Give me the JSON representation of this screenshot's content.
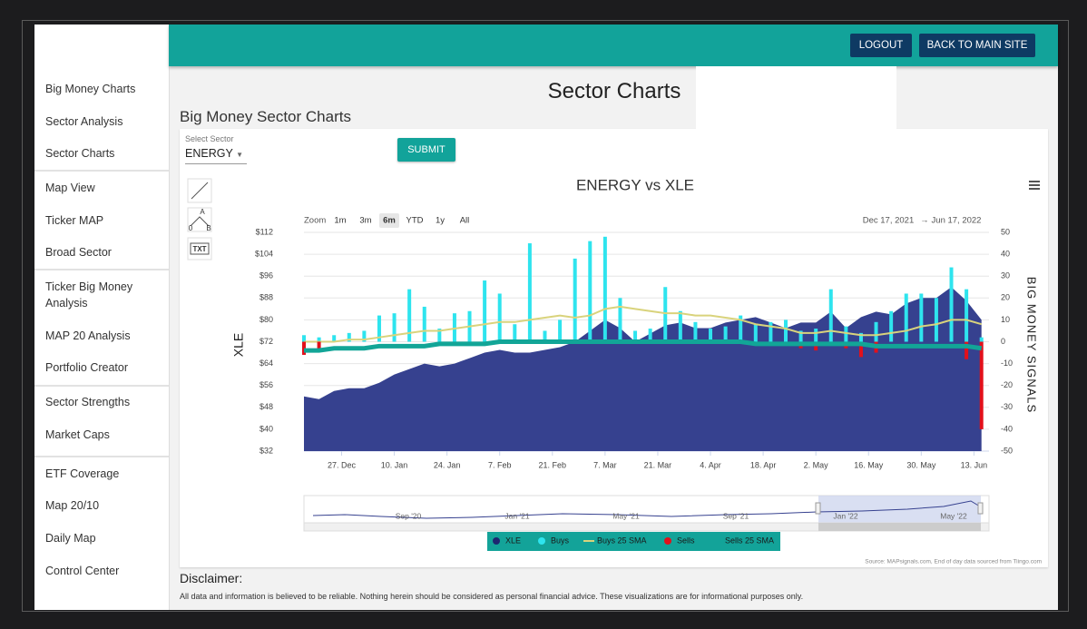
{
  "sidebar": {
    "groups": [
      [
        "Big Money Charts",
        "Sector Analysis",
        "Sector Charts"
      ],
      [
        "Map View",
        "Ticker MAP",
        "Broad Sector"
      ],
      [
        "Ticker Big Money Analysis",
        "MAP 20 Analysis",
        "Portfolio Creator"
      ],
      [
        "Sector Strengths",
        "Market Caps"
      ],
      [
        "ETF Coverage",
        "Map 20/10",
        "Daily Map",
        "Control Center"
      ]
    ]
  },
  "header": {
    "buttons": [
      "LOGOUT",
      "BACK TO MAIN SITE"
    ]
  },
  "page": {
    "title": "Sector Charts",
    "subtitle": "Big Money Sector Charts",
    "select_label": "Select Sector",
    "select_value": "ENERGY",
    "submit": "SUBMIT",
    "disclaimer_title": "Disclaimer:",
    "disclaimer_text": "All data and information is believed to be reliable. Nothing herein should be considered as personal financial advice. These visualizations are for informational purposes only."
  },
  "tools": {
    "labels": [
      "A",
      "0",
      "B",
      "TXT"
    ]
  },
  "chart_data": {
    "type": "combo",
    "title": "ENERGY vs XLE",
    "ylabel": "XLE",
    "y2label": "BIG MONEY SIGNALS",
    "zoom_label": "Zoom",
    "zoom_buttons": [
      "1m",
      "3m",
      "6m",
      "YTD",
      "1y",
      "All"
    ],
    "zoom_selected": "6m",
    "range_from": "Dec 17, 2021",
    "range_separator": "→",
    "range_to": "Jun 17, 2022",
    "credits": "Source: MAPsignals.com, End of day data sourced from Tiingo.com",
    "navigator_labels": [
      "Sep '20",
      "Jan '21",
      "May '21",
      "Sep '21",
      "Jan '22",
      "May '22"
    ],
    "grid": true,
    "xlim": [
      "2021-12-17",
      "2022-06-17"
    ],
    "xticks": [
      {
        "value": "2021-12-27",
        "label": "27. Dec"
      },
      {
        "value": "2022-01-10",
        "label": "10. Jan"
      },
      {
        "value": "2022-01-24",
        "label": "24. Jan"
      },
      {
        "value": "2022-02-07",
        "label": "7. Feb"
      },
      {
        "value": "2022-02-21",
        "label": "21. Feb"
      },
      {
        "value": "2022-03-07",
        "label": "7. Mar"
      },
      {
        "value": "2022-03-21",
        "label": "21. Mar"
      },
      {
        "value": "2022-04-04",
        "label": "4. Apr"
      },
      {
        "value": "2022-04-18",
        "label": "18. Apr"
      },
      {
        "value": "2022-05-02",
        "label": "2. May"
      },
      {
        "value": "2022-05-16",
        "label": "16. May"
      },
      {
        "value": "2022-05-30",
        "label": "30. May"
      },
      {
        "value": "2022-06-13",
        "label": "13. Jun"
      }
    ],
    "ylim": [
      32,
      112
    ],
    "yticks": [
      {
        "value": 32,
        "label": "$32"
      },
      {
        "value": 40,
        "label": "$40"
      },
      {
        "value": 48,
        "label": "$48"
      },
      {
        "value": 56,
        "label": "$56"
      },
      {
        "value": 64,
        "label": "$64"
      },
      {
        "value": 72,
        "label": "$72"
      },
      {
        "value": 80,
        "label": "$80"
      },
      {
        "value": 88,
        "label": "$88"
      },
      {
        "value": 96,
        "label": "$96"
      },
      {
        "value": 104,
        "label": "$104"
      },
      {
        "value": 112,
        "label": "$112"
      }
    ],
    "y2lim": [
      -50,
      50
    ],
    "y2ticks": [
      -50,
      -40,
      -30,
      -20,
      -10,
      0,
      10,
      20,
      30,
      40,
      50
    ],
    "x": [
      "2021-12-17",
      "2021-12-21",
      "2021-12-25",
      "2021-12-29",
      "2022-01-02",
      "2022-01-06",
      "2022-01-10",
      "2022-01-14",
      "2022-01-18",
      "2022-01-22",
      "2022-01-26",
      "2022-01-30",
      "2022-02-03",
      "2022-02-07",
      "2022-02-11",
      "2022-02-15",
      "2022-02-19",
      "2022-02-23",
      "2022-02-27",
      "2022-03-03",
      "2022-03-07",
      "2022-03-11",
      "2022-03-15",
      "2022-03-19",
      "2022-03-23",
      "2022-03-27",
      "2022-03-31",
      "2022-04-04",
      "2022-04-08",
      "2022-04-12",
      "2022-04-16",
      "2022-04-20",
      "2022-04-24",
      "2022-04-28",
      "2022-05-02",
      "2022-05-06",
      "2022-05-10",
      "2022-05-14",
      "2022-05-18",
      "2022-05-22",
      "2022-05-26",
      "2022-05-30",
      "2022-06-03",
      "2022-06-07",
      "2022-06-11",
      "2022-06-15"
    ],
    "series": [
      {
        "name": "XLE",
        "kind": "area",
        "axis": "y",
        "color": "#36418f",
        "values": [
          52,
          51,
          54,
          55,
          55,
          57,
          60,
          62,
          64,
          63,
          64,
          66,
          68,
          69,
          68,
          68,
          69,
          70,
          72,
          76,
          80,
          77,
          72,
          75,
          78,
          79,
          77,
          77,
          79,
          80,
          81,
          79,
          77,
          79,
          79,
          83,
          77,
          81,
          83,
          82,
          86,
          88,
          88,
          92,
          87,
          80
        ]
      },
      {
        "name": "Buys",
        "kind": "column",
        "axis": "y2",
        "color": "#2ee4ee",
        "values": [
          3,
          2,
          3,
          4,
          5,
          12,
          13,
          24,
          16,
          6,
          13,
          14,
          28,
          22,
          8,
          45,
          5,
          10,
          38,
          46,
          48,
          20,
          5,
          6,
          25,
          14,
          9,
          6,
          7,
          12,
          8,
          9,
          10,
          5,
          6,
          24,
          7,
          4,
          9,
          14,
          22,
          22,
          20,
          34,
          24,
          2
        ]
      },
      {
        "name": "Buys 25 SMA",
        "kind": "line",
        "axis": "y2",
        "color": "#d9d37c",
        "values": [
          0,
          0,
          0,
          1,
          1,
          2,
          3,
          4,
          5,
          5,
          6,
          7,
          8,
          9,
          9,
          10,
          11,
          12,
          11,
          12,
          15,
          16,
          15,
          14,
          13,
          13,
          12,
          12,
          11,
          10,
          8,
          7,
          6,
          4,
          4,
          5,
          4,
          3,
          3,
          4,
          5,
          7,
          8,
          10,
          10,
          8
        ]
      },
      {
        "name": "Sells",
        "kind": "column",
        "axis": "y2",
        "color": "#e3101b",
        "values": [
          -6,
          -4,
          0,
          0,
          0,
          0,
          0,
          0,
          0,
          0,
          0,
          0,
          0,
          0,
          0,
          0,
          0,
          0,
          0,
          0,
          0,
          0,
          0,
          0,
          0,
          0,
          0,
          0,
          0,
          0,
          0,
          0,
          0,
          -3,
          -4,
          0,
          -3,
          -7,
          -5,
          0,
          0,
          0,
          0,
          0,
          -8,
          -40
        ]
      },
      {
        "name": "Sells 25 SMA",
        "kind": "line",
        "axis": "y2",
        "color": "#12a597",
        "values": [
          -4,
          -4,
          -3,
          -3,
          -3,
          -2,
          -2,
          -2,
          -2,
          -1,
          -1,
          -1,
          -1,
          0,
          0,
          0,
          0,
          0,
          0,
          0,
          0,
          0,
          0,
          0,
          0,
          0,
          0,
          0,
          0,
          0,
          -1,
          -1,
          -1,
          -1,
          -1,
          -1,
          -1,
          -1,
          -2,
          -2,
          -2,
          -2,
          -2,
          -2,
          -2,
          -3
        ]
      }
    ]
  }
}
